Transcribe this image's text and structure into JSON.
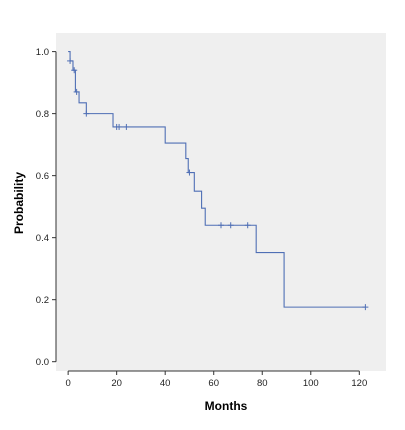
{
  "chart_data": {
    "type": "line",
    "subtype": "kaplan-meier-step",
    "title": "",
    "xlabel": "Months",
    "ylabel": "Probability",
    "xlim": [
      -5,
      131
    ],
    "ylim": [
      -0.03,
      1.06
    ],
    "xticks": [
      0,
      20,
      40,
      60,
      80,
      100,
      120
    ],
    "xtick_labels": [
      "0",
      "20",
      "40",
      "60",
      "80",
      "100",
      "120"
    ],
    "yticks": [
      0.0,
      0.2,
      0.4,
      0.6,
      0.8,
      1.0
    ],
    "ytick_labels": [
      "0.0",
      "0.2",
      "0.4",
      "0.6",
      "0.8",
      "1.0"
    ],
    "grid": false,
    "legend": "none",
    "colors": {
      "plot_background": "#efefef",
      "line": "#4f6fb5",
      "axis": "#333333",
      "censor_marks": "#4f6fb5"
    },
    "series": [
      {
        "steps": [
          {
            "x": 0,
            "y": 1.0
          },
          {
            "x": 0.8,
            "y": 0.97
          },
          {
            "x": 2.0,
            "y": 0.94
          },
          {
            "x": 3.0,
            "y": 0.87
          },
          {
            "x": 4.5,
            "y": 0.835
          },
          {
            "x": 7.5,
            "y": 0.8
          },
          {
            "x": 18.5,
            "y": 0.757
          },
          {
            "x": 40.0,
            "y": 0.705
          },
          {
            "x": 48.5,
            "y": 0.655
          },
          {
            "x": 49.5,
            "y": 0.61
          },
          {
            "x": 52.0,
            "y": 0.55
          },
          {
            "x": 55.0,
            "y": 0.495
          },
          {
            "x": 56.5,
            "y": 0.44
          },
          {
            "x": 77.5,
            "y": 0.352
          },
          {
            "x": 89.0,
            "y": 0.176
          },
          {
            "x": 122.5,
            "y": 0.176
          }
        ],
        "censored": [
          {
            "x": 0.8,
            "y": 0.97
          },
          {
            "x": 2.5,
            "y": 0.94
          },
          {
            "x": 3.5,
            "y": 0.87
          },
          {
            "x": 7.5,
            "y": 0.8
          },
          {
            "x": 20.0,
            "y": 0.757
          },
          {
            "x": 21.0,
            "y": 0.757
          },
          {
            "x": 24.0,
            "y": 0.757
          },
          {
            "x": 50.0,
            "y": 0.61
          },
          {
            "x": 63.0,
            "y": 0.44
          },
          {
            "x": 67.0,
            "y": 0.44
          },
          {
            "x": 74.0,
            "y": 0.44
          },
          {
            "x": 122.5,
            "y": 0.176
          }
        ]
      }
    ]
  }
}
